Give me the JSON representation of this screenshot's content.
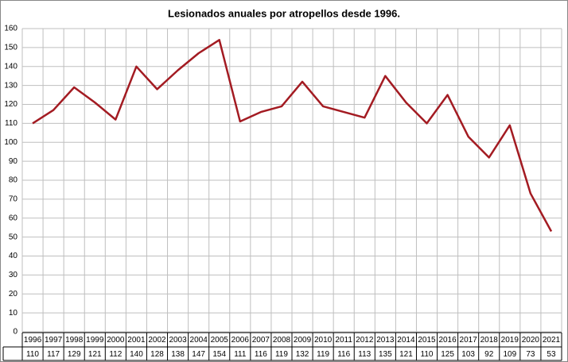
{
  "chart_data": {
    "type": "line",
    "title": "Lesionados anuales por atropellos desde 1996.",
    "categories": [
      "1996",
      "1997",
      "1998",
      "1999",
      "2000",
      "2001",
      "2002",
      "2003",
      "2004",
      "2005",
      "2006",
      "2007",
      "2008",
      "2009",
      "2010",
      "2011",
      "2012",
      "2013",
      "2014",
      "2015",
      "2016",
      "2017",
      "2018",
      "2019",
      "2020",
      "2021"
    ],
    "values": [
      110,
      117,
      129,
      121,
      112,
      140,
      128,
      138,
      147,
      154,
      111,
      116,
      119,
      132,
      119,
      116,
      113,
      135,
      121,
      110,
      125,
      103,
      92,
      109,
      73,
      53
    ],
    "color": "#a31b22",
    "ylim": [
      0,
      160
    ],
    "yticks": [
      0,
      10,
      20,
      30,
      40,
      50,
      60,
      70,
      80,
      90,
      100,
      110,
      120,
      130,
      140,
      150,
      160
    ],
    "grid": true
  }
}
